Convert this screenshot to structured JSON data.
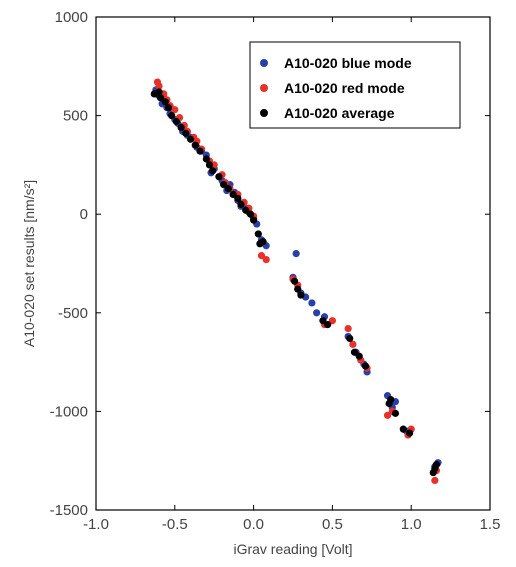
{
  "chart_data": {
    "type": "scatter",
    "xlabel": "iGrav reading [Volt]",
    "ylabel": "A10-020 set results [nm/s²]",
    "xlim": [
      -1.0,
      1.5
    ],
    "ylim": [
      -1500,
      1000
    ],
    "xticks": [
      "-1.0",
      "-0.5",
      "0.0",
      "0.5",
      "1.0",
      "1.5"
    ],
    "yticks": [
      "1000",
      "500",
      "0",
      "-500",
      "-1000",
      "-1500"
    ],
    "grid": false,
    "legend": {
      "position": "top-right",
      "entries": [
        "A10-020 blue mode",
        "A10-020 red mode",
        "A10-020 average"
      ]
    },
    "series": [
      {
        "name": "A10-020 blue mode",
        "color": "#2b3fa8",
        "points": [
          [
            -0.62,
            630
          ],
          [
            -0.6,
            600
          ],
          [
            -0.58,
            560
          ],
          [
            -0.57,
            590
          ],
          [
            -0.55,
            540
          ],
          [
            -0.53,
            510
          ],
          [
            -0.5,
            480
          ],
          [
            -0.48,
            460
          ],
          [
            -0.45,
            420
          ],
          [
            -0.42,
            400
          ],
          [
            -0.4,
            390
          ],
          [
            -0.36,
            340
          ],
          [
            -0.33,
            320
          ],
          [
            -0.3,
            300
          ],
          [
            -0.27,
            210
          ],
          [
            -0.25,
            230
          ],
          [
            -0.2,
            170
          ],
          [
            -0.17,
            120
          ],
          [
            -0.15,
            150
          ],
          [
            -0.12,
            110
          ],
          [
            -0.1,
            70
          ],
          [
            -0.08,
            40
          ],
          [
            -0.05,
            30
          ],
          [
            -0.03,
            10
          ],
          [
            0.0,
            -20
          ],
          [
            0.02,
            -50
          ],
          [
            0.05,
            -130
          ],
          [
            0.08,
            -160
          ],
          [
            0.25,
            -320
          ],
          [
            0.27,
            -200
          ],
          [
            0.3,
            -400
          ],
          [
            0.33,
            -420
          ],
          [
            0.37,
            -450
          ],
          [
            0.4,
            -500
          ],
          [
            0.45,
            -520
          ],
          [
            0.6,
            -620
          ],
          [
            0.65,
            -700
          ],
          [
            0.7,
            -760
          ],
          [
            0.72,
            -800
          ],
          [
            0.85,
            -920
          ],
          [
            0.88,
            -980
          ],
          [
            0.9,
            -950
          ],
          [
            0.97,
            -1100
          ],
          [
            1.15,
            -1280
          ],
          [
            1.17,
            -1260
          ]
        ]
      },
      {
        "name": "A10-020 red mode",
        "color": "#e8312a",
        "points": [
          [
            -0.61,
            670
          ],
          [
            -0.6,
            650
          ],
          [
            -0.57,
            610
          ],
          [
            -0.55,
            580
          ],
          [
            -0.53,
            550
          ],
          [
            -0.5,
            530
          ],
          [
            -0.47,
            490
          ],
          [
            -0.44,
            450
          ],
          [
            -0.42,
            420
          ],
          [
            -0.38,
            390
          ],
          [
            -0.36,
            370
          ],
          [
            -0.33,
            330
          ],
          [
            -0.28,
            270
          ],
          [
            -0.25,
            250
          ],
          [
            -0.2,
            200
          ],
          [
            -0.18,
            160
          ],
          [
            -0.15,
            130
          ],
          [
            -0.1,
            100
          ],
          [
            -0.06,
            60
          ],
          [
            -0.03,
            30
          ],
          [
            0.0,
            -10
          ],
          [
            0.05,
            -210
          ],
          [
            0.08,
            -230
          ],
          [
            0.25,
            -330
          ],
          [
            0.28,
            -360
          ],
          [
            0.45,
            -560
          ],
          [
            0.5,
            -540
          ],
          [
            0.6,
            -580
          ],
          [
            0.63,
            -660
          ],
          [
            0.68,
            -740
          ],
          [
            0.72,
            -780
          ],
          [
            0.85,
            -1020
          ],
          [
            0.88,
            -1000
          ],
          [
            0.98,
            -1120
          ],
          [
            1.0,
            -1090
          ],
          [
            1.15,
            -1350
          ],
          [
            1.16,
            -1300
          ]
        ]
      },
      {
        "name": "A10-020 average",
        "color": "#000000",
        "points": [
          [
            -0.63,
            610
          ],
          [
            -0.6,
            620
          ],
          [
            -0.59,
            590
          ],
          [
            -0.56,
            570
          ],
          [
            -0.54,
            540
          ],
          [
            -0.52,
            500
          ],
          [
            -0.49,
            470
          ],
          [
            -0.46,
            440
          ],
          [
            -0.43,
            410
          ],
          [
            -0.4,
            380
          ],
          [
            -0.37,
            350
          ],
          [
            -0.34,
            320
          ],
          [
            -0.3,
            280
          ],
          [
            -0.28,
            250
          ],
          [
            -0.26,
            220
          ],
          [
            -0.22,
            190
          ],
          [
            -0.19,
            150
          ],
          [
            -0.16,
            130
          ],
          [
            -0.13,
            100
          ],
          [
            -0.1,
            80
          ],
          [
            -0.08,
            50
          ],
          [
            -0.05,
            20
          ],
          [
            -0.02,
            0
          ],
          [
            0.0,
            -30
          ],
          [
            0.03,
            -100
          ],
          [
            0.04,
            -150
          ],
          [
            0.06,
            -140
          ],
          [
            0.26,
            -340
          ],
          [
            0.28,
            -380
          ],
          [
            0.3,
            -410
          ],
          [
            0.44,
            -540
          ],
          [
            0.47,
            -560
          ],
          [
            0.61,
            -630
          ],
          [
            0.64,
            -700
          ],
          [
            0.67,
            -720
          ],
          [
            0.71,
            -770
          ],
          [
            0.86,
            -960
          ],
          [
            0.87,
            -940
          ],
          [
            0.9,
            -1010
          ],
          [
            0.95,
            -1090
          ],
          [
            0.99,
            -1110
          ],
          [
            1.14,
            -1310
          ],
          [
            1.15,
            -1290
          ],
          [
            1.16,
            -1270
          ]
        ]
      }
    ]
  }
}
